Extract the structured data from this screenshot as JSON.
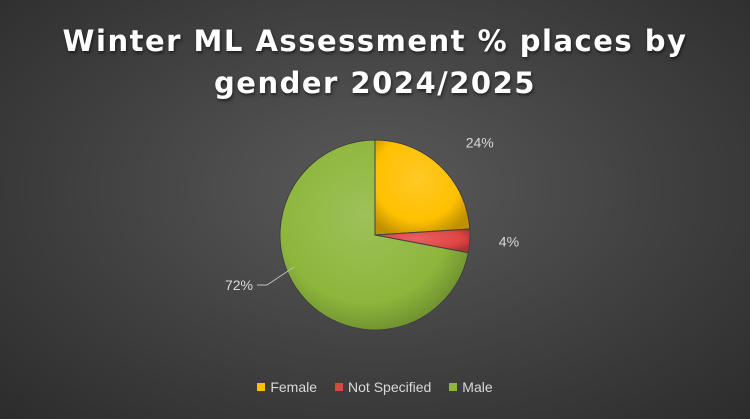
{
  "chart_data": {
    "type": "pie",
    "title_lines": [
      "Winter ML Assessment % places by",
      "gender 2024/2025"
    ],
    "categories": [
      "Female",
      "Not Specified",
      "Male"
    ],
    "values": [
      24,
      4,
      72
    ],
    "labels": [
      "24%",
      "4%",
      "72%"
    ],
    "colors": [
      "#ffc000",
      "#e04545",
      "#8db63c"
    ],
    "legend_position": "bottom",
    "start_angle_deg": 0,
    "direction": "clockwise"
  }
}
